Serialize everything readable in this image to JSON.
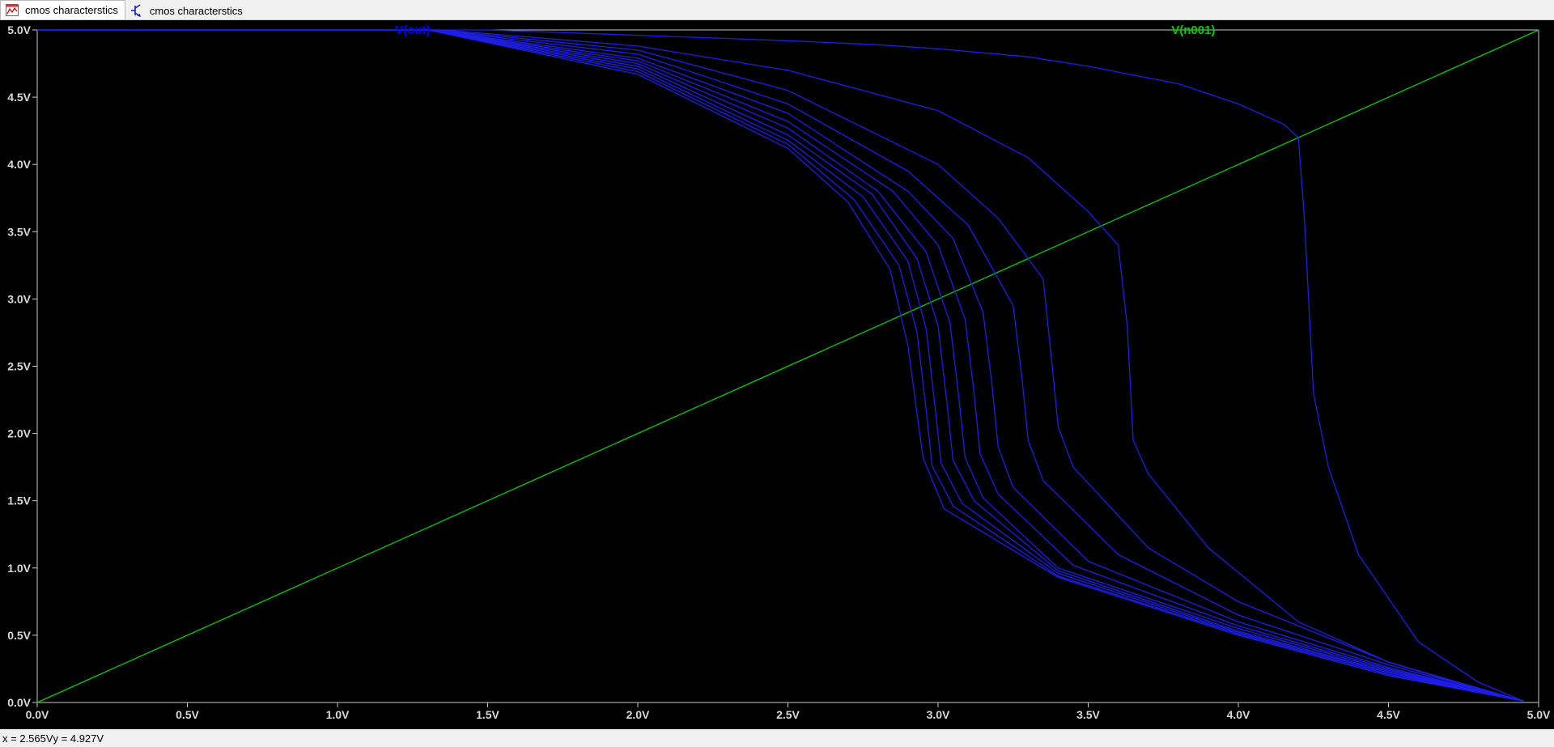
{
  "tabs": [
    {
      "label": "cmos characterstics",
      "icon": "waveform-icon",
      "active": true
    },
    {
      "label": "cmos characterstics",
      "icon": "schematic-icon",
      "active": false
    }
  ],
  "status": {
    "x_readout": "x = 2.565V",
    "y_readout": "y = 4.927V"
  },
  "chart_data": {
    "type": "line",
    "background": "#000000",
    "grid": false,
    "xlim": [
      0,
      5
    ],
    "ylim": [
      0,
      5
    ],
    "x_ticks": [
      "0.0V",
      "0.5V",
      "1.0V",
      "1.5V",
      "2.0V",
      "2.5V",
      "3.0V",
      "3.5V",
      "4.0V",
      "4.5V",
      "5.0V"
    ],
    "y_ticks": [
      "0.0V",
      "0.5V",
      "1.0V",
      "1.5V",
      "2.0V",
      "2.5V",
      "3.0V",
      "3.5V",
      "4.0V",
      "4.5V",
      "5.0V"
    ],
    "legend": [
      {
        "name": "V(out)",
        "color": "#0000ff"
      },
      {
        "name": "V(n001)",
        "color": "#00cc00"
      }
    ],
    "series": [
      {
        "name": "V(n001)",
        "color": "#00cc00",
        "x": [
          0,
          5
        ],
        "y": [
          0,
          5
        ]
      },
      {
        "group": "V(out)",
        "color": "#1e1ee6",
        "x": [
          0,
          1.3,
          1.5,
          2.0,
          2.5,
          2.8,
          3.0,
          3.3,
          3.5,
          3.8,
          4.0,
          4.15,
          4.2,
          4.22,
          4.25,
          4.3,
          4.4,
          4.6,
          4.8,
          4.95
        ],
        "y": [
          5,
          5,
          5,
          4.96,
          4.92,
          4.89,
          4.86,
          4.8,
          4.73,
          4.6,
          4.45,
          4.3,
          4.2,
          3.6,
          2.3,
          1.75,
          1.1,
          0.45,
          0.15,
          0.01
        ]
      },
      {
        "group": "V(out)",
        "color": "#1e1ee6",
        "x": [
          0,
          1.35,
          2.0,
          2.5,
          3.0,
          3.3,
          3.5,
          3.6,
          3.63,
          3.65,
          3.7,
          3.9,
          4.2,
          4.5,
          4.8,
          4.95
        ],
        "y": [
          5,
          5,
          4.88,
          4.7,
          4.4,
          4.05,
          3.65,
          3.4,
          2.8,
          1.95,
          1.7,
          1.15,
          0.6,
          0.3,
          0.1,
          0.01
        ]
      },
      {
        "group": "V(out)",
        "color": "#1e1ee6",
        "x": [
          0,
          1.33,
          2.0,
          2.5,
          3.0,
          3.2,
          3.35,
          3.38,
          3.4,
          3.45,
          3.7,
          4.0,
          4.5,
          4.95
        ],
        "y": [
          5,
          5,
          4.85,
          4.55,
          4.0,
          3.6,
          3.15,
          2.5,
          2.05,
          1.75,
          1.15,
          0.75,
          0.3,
          0.01
        ]
      },
      {
        "group": "V(out)",
        "color": "#1e1ee6",
        "x": [
          0,
          1.32,
          2.0,
          2.5,
          2.9,
          3.1,
          3.25,
          3.28,
          3.3,
          3.35,
          3.6,
          4.0,
          4.5,
          4.95
        ],
        "y": [
          5,
          5,
          4.82,
          4.45,
          3.95,
          3.55,
          2.95,
          2.4,
          1.95,
          1.65,
          1.1,
          0.65,
          0.28,
          0.01
        ]
      },
      {
        "group": "V(out)",
        "color": "#1e1ee6",
        "x": [
          0,
          1.31,
          2.0,
          2.5,
          2.9,
          3.05,
          3.15,
          3.18,
          3.2,
          3.25,
          3.5,
          4.0,
          4.5,
          4.95
        ],
        "y": [
          5,
          5,
          4.79,
          4.38,
          3.8,
          3.45,
          2.9,
          2.35,
          1.9,
          1.6,
          1.05,
          0.6,
          0.26,
          0.01
        ]
      },
      {
        "group": "V(out)",
        "color": "#1e1ee6",
        "x": [
          0,
          1.3,
          2.0,
          2.5,
          2.85,
          3.0,
          3.09,
          3.12,
          3.14,
          3.2,
          3.45,
          4.0,
          4.5,
          4.95
        ],
        "y": [
          5,
          5,
          4.77,
          4.32,
          3.8,
          3.4,
          2.85,
          2.3,
          1.85,
          1.55,
          1.02,
          0.57,
          0.25,
          0.01
        ]
      },
      {
        "group": "V(out)",
        "color": "#1e1ee6",
        "x": [
          0,
          1.3,
          2.0,
          2.5,
          2.8,
          2.96,
          3.04,
          3.07,
          3.09,
          3.15,
          3.4,
          4.0,
          4.5,
          4.95
        ],
        "y": [
          5,
          5,
          4.75,
          4.27,
          3.8,
          3.35,
          2.82,
          2.25,
          1.82,
          1.52,
          1.0,
          0.55,
          0.24,
          0.01
        ]
      },
      {
        "group": "V(out)",
        "color": "#1e1ee6",
        "x": [
          0,
          1.3,
          2.0,
          2.5,
          2.78,
          2.93,
          3.0,
          3.03,
          3.05,
          3.12,
          3.4,
          4.0,
          4.5,
          4.95
        ],
        "y": [
          5,
          5,
          4.73,
          4.22,
          3.78,
          3.3,
          2.8,
          2.22,
          1.8,
          1.5,
          0.98,
          0.53,
          0.23,
          0.01
        ]
      },
      {
        "group": "V(out)",
        "color": "#1e1ee6",
        "x": [
          0,
          1.3,
          2.0,
          2.5,
          2.75,
          2.9,
          2.96,
          2.99,
          3.01,
          3.08,
          3.4,
          4.0,
          4.5,
          4.95
        ],
        "y": [
          5,
          5,
          4.71,
          4.18,
          3.76,
          3.28,
          2.78,
          2.2,
          1.78,
          1.48,
          0.96,
          0.52,
          0.22,
          0.01
        ]
      },
      {
        "group": "V(out)",
        "color": "#1e1ee6",
        "x": [
          0,
          1.3,
          2.0,
          2.5,
          2.72,
          2.87,
          2.93,
          2.96,
          2.98,
          3.05,
          3.4,
          4.0,
          4.5,
          4.95
        ],
        "y": [
          5,
          5,
          4.69,
          4.15,
          3.74,
          3.25,
          2.75,
          2.18,
          1.76,
          1.46,
          0.94,
          0.51,
          0.21,
          0.01
        ]
      },
      {
        "group": "V(out)",
        "color": "#1e1ee6",
        "x": [
          0,
          1.3,
          2.0,
          2.5,
          2.7,
          2.84,
          2.9,
          2.93,
          2.95,
          3.02,
          3.4,
          4.0,
          4.5,
          4.95
        ],
        "y": [
          5,
          5,
          4.67,
          4.12,
          3.72,
          3.22,
          2.65,
          2.15,
          1.82,
          1.44,
          0.93,
          0.5,
          0.2,
          0.01
        ]
      }
    ]
  }
}
